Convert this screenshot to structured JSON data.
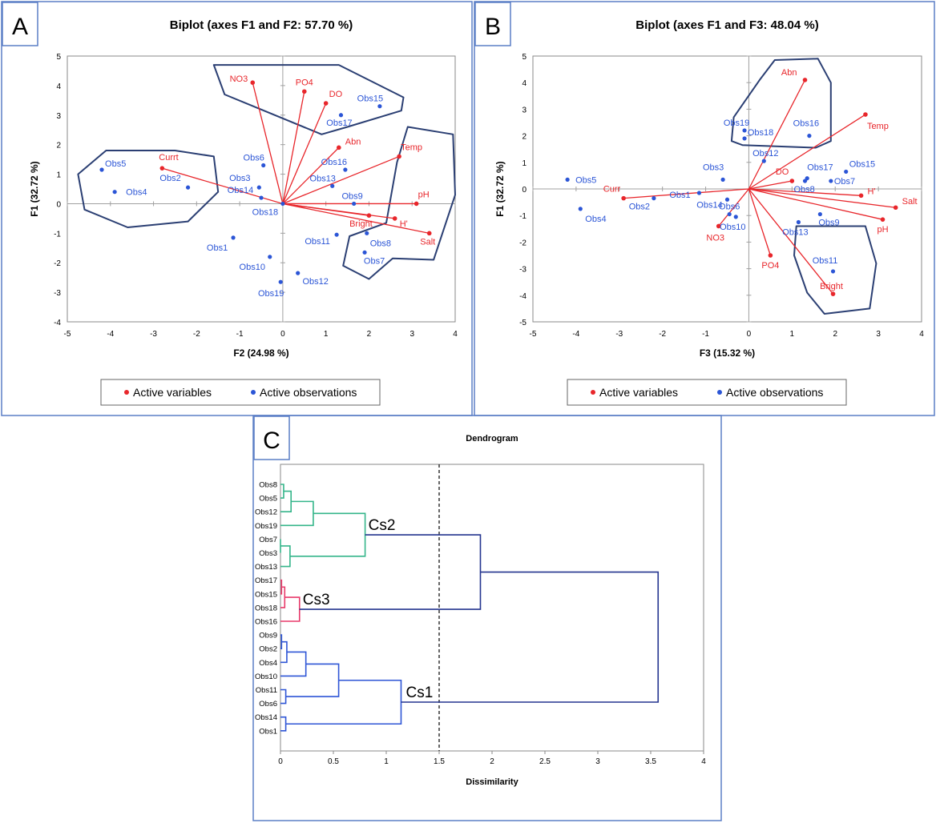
{
  "colors": {
    "variables": "#e8262b",
    "observations": "#2b55d6",
    "hull": "#2b3f73",
    "frame": "#5b7fc6",
    "cs2": "#34b58a",
    "cs3": "#e83a6a",
    "cs1": "#2f56d6",
    "root": "#23348f"
  },
  "panels": {
    "a": "A",
    "b": "B",
    "c": "C"
  },
  "chart_data": [
    {
      "type": "scatter",
      "panel": "A",
      "title": "Biplot (axes F1 and F2: 57.70 %)",
      "xlabel": "F2 (24.98 %)",
      "ylabel": "F1 (32.72 %)",
      "xlim": [
        -5,
        4
      ],
      "ylim": [
        -4,
        5
      ],
      "xticks": [
        "-5",
        "-4",
        "-3",
        "-2",
        "-1",
        "0",
        "1",
        "2",
        "3",
        "4"
      ],
      "yticks": [
        "-4",
        "-3",
        "-2",
        "-1",
        "0",
        "1",
        "2",
        "3",
        "4",
        "5"
      ],
      "legend": [
        "Active variables",
        "Active observations"
      ],
      "legend_position": "bottom",
      "variables": [
        {
          "label": "NO3",
          "x": -0.7,
          "y": 4.1
        },
        {
          "label": "PO4",
          "x": 0.5,
          "y": 3.8
        },
        {
          "label": "DO",
          "x": 1.0,
          "y": 3.4
        },
        {
          "label": "Abn",
          "x": 1.3,
          "y": 1.9
        },
        {
          "label": "Temp",
          "x": 2.7,
          "y": 1.6
        },
        {
          "label": "Currt",
          "x": -2.8,
          "y": 1.2
        },
        {
          "label": "pH",
          "x": 3.1,
          "y": 0.0
        },
        {
          "label": "Bright",
          "x": 2.0,
          "y": -0.4
        },
        {
          "label": "H'",
          "x": 2.6,
          "y": -0.5
        },
        {
          "label": "Salt",
          "x": 3.4,
          "y": -1.0
        }
      ],
      "observations": [
        {
          "label": "Obs15",
          "x": 2.25,
          "y": 3.3
        },
        {
          "label": "Obs17",
          "x": 1.35,
          "y": 3.0
        },
        {
          "label": "Obs6",
          "x": -0.45,
          "y": 1.3
        },
        {
          "label": "Obs16",
          "x": 1.45,
          "y": 1.15
        },
        {
          "label": "Obs5",
          "x": -4.2,
          "y": 1.15
        },
        {
          "label": "Obs3",
          "x": -0.55,
          "y": 0.55
        },
        {
          "label": "Obs13",
          "x": 1.15,
          "y": 0.6
        },
        {
          "label": "Obs2",
          "x": -2.2,
          "y": 0.55
        },
        {
          "label": "Obs4",
          "x": -3.9,
          "y": 0.4
        },
        {
          "label": "Obs14",
          "x": -0.5,
          "y": 0.2
        },
        {
          "label": "Obs9",
          "x": 1.65,
          "y": 0.0
        },
        {
          "label": "Obs18",
          "x": 0.0,
          "y": 0.0
        },
        {
          "label": "Obs11",
          "x": 1.25,
          "y": -1.05
        },
        {
          "label": "Obs8",
          "x": 1.95,
          "y": -1.0
        },
        {
          "label": "Obs1",
          "x": -1.15,
          "y": -1.15
        },
        {
          "label": "Obs7",
          "x": 1.9,
          "y": -1.65
        },
        {
          "label": "Obs10",
          "x": -0.3,
          "y": -1.8
        },
        {
          "label": "Obs12",
          "x": 0.35,
          "y": -2.35
        },
        {
          "label": "Obs19",
          "x": -0.05,
          "y": -2.65
        }
      ]
    },
    {
      "type": "scatter",
      "panel": "B",
      "title": "Biplot (axes F1 and F3: 48.04 %)",
      "xlabel": "F3 (15.32 %)",
      "ylabel": "F1 (32.72 %)",
      "xlim": [
        -5,
        4
      ],
      "ylim": [
        -5,
        5
      ],
      "xticks": [
        "-5",
        "-4",
        "-3",
        "-2",
        "-1",
        "0",
        "1",
        "2",
        "3",
        "4"
      ],
      "yticks": [
        "-5",
        "-4",
        "-3",
        "-2",
        "-1",
        "0",
        "1",
        "2",
        "3",
        "4",
        "5"
      ],
      "legend": [
        "Active variables",
        "Active observations"
      ],
      "legend_position": "bottom",
      "variables": [
        {
          "label": "Abn",
          "x": 1.3,
          "y": 4.1
        },
        {
          "label": "Temp",
          "x": 2.7,
          "y": 2.8
        },
        {
          "label": "DO",
          "x": 1.0,
          "y": 0.3
        },
        {
          "label": "Curr",
          "x": -2.9,
          "y": -0.35
        },
        {
          "label": "H'",
          "x": 2.6,
          "y": -0.25
        },
        {
          "label": "Salt",
          "x": 3.4,
          "y": -0.7
        },
        {
          "label": "pH",
          "x": 3.1,
          "y": -1.15
        },
        {
          "label": "NO3",
          "x": -0.7,
          "y": -1.4
        },
        {
          "label": "PO4",
          "x": 0.5,
          "y": -2.5
        },
        {
          "label": "Bright",
          "x": 1.95,
          "y": -3.95
        }
      ],
      "observations": [
        {
          "label": "Obs19",
          "x": -0.1,
          "y": 2.2
        },
        {
          "label": "Obs18",
          "x": -0.1,
          "y": 1.9
        },
        {
          "label": "Obs16",
          "x": 1.4,
          "y": 2.0
        },
        {
          "label": "Obs12",
          "x": 0.35,
          "y": 1.05
        },
        {
          "label": "Obs5",
          "x": -4.2,
          "y": 0.35
        },
        {
          "label": "Obs3",
          "x": -0.6,
          "y": 0.35
        },
        {
          "label": "Obs17",
          "x": 1.35,
          "y": 0.4
        },
        {
          "label": "Obs15",
          "x": 2.25,
          "y": 0.65
        },
        {
          "label": "Obs8",
          "x": 1.3,
          "y": 0.3
        },
        {
          "label": "Obs7",
          "x": 1.9,
          "y": 0.3
        },
        {
          "label": "Obs1",
          "x": -1.15,
          "y": -0.15
        },
        {
          "label": "Obs2",
          "x": -2.2,
          "y": -0.35
        },
        {
          "label": "Obs14",
          "x": -0.5,
          "y": -0.4
        },
        {
          "label": "Obs6",
          "x": -0.45,
          "y": -0.95
        },
        {
          "label": "Obs10",
          "x": -0.3,
          "y": -1.05
        },
        {
          "label": "Obs4",
          "x": -3.9,
          "y": -0.75
        },
        {
          "label": "Obs9",
          "x": 1.65,
          "y": -0.95
        },
        {
          "label": "Obs13",
          "x": 1.15,
          "y": -1.25
        },
        {
          "label": "Obs11",
          "x": 1.95,
          "y": -3.1
        }
      ]
    },
    {
      "type": "dendrogram",
      "panel": "C",
      "title": "Dendrogram",
      "xlabel": "Dissimilarity",
      "xlim": [
        0,
        4
      ],
      "xticks": [
        "0",
        "0.5",
        "1",
        "1.5",
        "2",
        "2.5",
        "3",
        "3.5",
        "4"
      ],
      "truncation": 1.5,
      "leaves": [
        "Obs8",
        "Obs5",
        "Obs12",
        "Obs19",
        "Obs7",
        "Obs3",
        "Obs13",
        "Obs17",
        "Obs15",
        "Obs18",
        "Obs16",
        "Obs9",
        "Obs2",
        "Obs4",
        "Obs10",
        "Obs11",
        "Obs6",
        "Obs14",
        "Obs1"
      ],
      "cluster_labels": [
        "Cs2",
        "Cs3",
        "Cs1"
      ],
      "merges": [
        {
          "a": 0,
          "b": 1,
          "h": 0.03,
          "c": "cs2"
        },
        {
          "a": 19,
          "b": 2,
          "h": 0.1,
          "c": "cs2"
        },
        {
          "a": 20,
          "b": 3,
          "h": 0.31,
          "c": "cs2"
        },
        {
          "a": 4,
          "b": 5,
          "h": 0.0,
          "c": "cs2"
        },
        {
          "a": 22,
          "b": 6,
          "h": 0.09,
          "c": "cs2"
        },
        {
          "a": 21,
          "b": 23,
          "h": 0.8,
          "c": "cs2"
        },
        {
          "a": 7,
          "b": 8,
          "h": 0.01,
          "c": "cs3"
        },
        {
          "a": 25,
          "b": 9,
          "h": 0.04,
          "c": "cs3"
        },
        {
          "a": 26,
          "b": 10,
          "h": 0.18,
          "c": "cs3"
        },
        {
          "a": 11,
          "b": 12,
          "h": 0.01,
          "c": "cs1"
        },
        {
          "a": 28,
          "b": 13,
          "h": 0.06,
          "c": "cs1"
        },
        {
          "a": 29,
          "b": 14,
          "h": 0.24,
          "c": "cs1"
        },
        {
          "a": 15,
          "b": 16,
          "h": 0.05,
          "c": "cs1"
        },
        {
          "a": 30,
          "b": 31,
          "h": 0.55,
          "c": "cs1"
        },
        {
          "a": 17,
          "b": 18,
          "h": 0.05,
          "c": "cs1"
        },
        {
          "a": 32,
          "b": 33,
          "h": 1.14,
          "c": "cs1"
        },
        {
          "a": 24,
          "b": 27,
          "h": 1.89,
          "c": "root"
        },
        {
          "a": 35,
          "b": 34,
          "h": 3.57,
          "c": "root"
        }
      ]
    }
  ]
}
